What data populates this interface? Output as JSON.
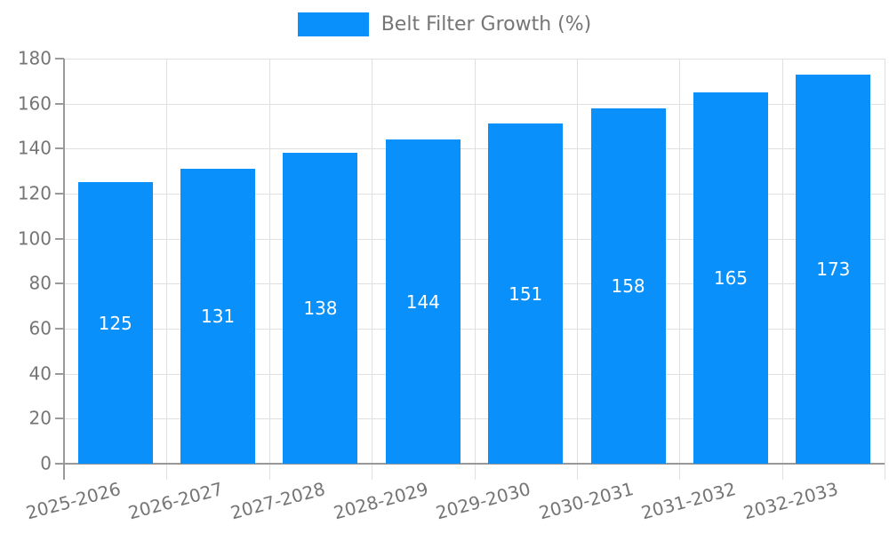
{
  "legend": {
    "label": "Belt Filter Growth (%)",
    "swatch_color": "#0a90fa"
  },
  "chart_data": {
    "type": "bar",
    "title": "",
    "series_name": "Belt Filter Growth (%)",
    "categories": [
      "2025-2026",
      "2026-2027",
      "2027-2028",
      "2028-2029",
      "2029-2030",
      "2030-2031",
      "2031-2032",
      "2032-2033"
    ],
    "values": [
      125,
      131,
      138,
      144,
      151,
      158,
      165,
      173
    ],
    "xlabel": "",
    "ylabel": "",
    "ylim": [
      0,
      180
    ],
    "ytick_step": 20,
    "grid": true,
    "legend_position": "top",
    "x_label_rotation_deg": -15,
    "bar_color": "#0a90fa",
    "value_label_color": "#ffffff",
    "axis_text_color": "#757575",
    "axis_line_color": "#999999",
    "grid_color": "#e0e0e0",
    "background_color": "#ffffff"
  }
}
